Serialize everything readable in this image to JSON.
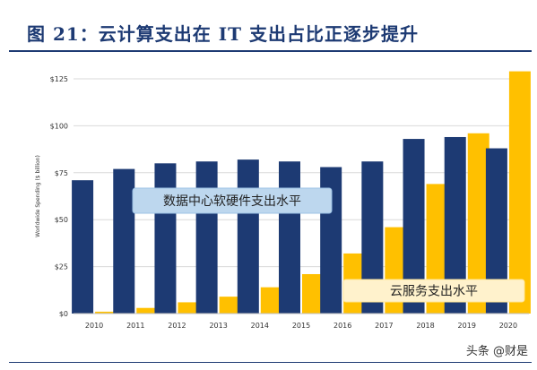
{
  "figure": {
    "title": "图 21：云计算支出在 IT 支出占比正逐步提升"
  },
  "watermark": "头条 @财是",
  "colors": {
    "title": "#1d3a73",
    "hardware_series": "#1d3a73",
    "cloud_series": "#ffc000",
    "hardware_label_box": "#bdd7ee",
    "cloud_label_box": "#fff2cc"
  },
  "chart_data": {
    "type": "bar",
    "title": "",
    "xlabel": "",
    "ylabel": "Worldwide Spending ($ billion)",
    "categories": [
      "2010",
      "2011",
      "2012",
      "2013",
      "2014",
      "2015",
      "2016",
      "2017",
      "2018",
      "2019",
      "2020"
    ],
    "ylim": [
      0,
      125
    ],
    "yticks": [
      0,
      25,
      50,
      75,
      100,
      125
    ],
    "ytick_labels": [
      "$0",
      "$25",
      "$50",
      "$75",
      "$100",
      "$125"
    ],
    "grid": true,
    "series": [
      {
        "name": "数据中心软硬件支出水平",
        "color": "#1d3a73",
        "values": [
          71,
          77,
          80,
          81,
          82,
          81,
          78,
          81,
          93,
          94,
          88
        ]
      },
      {
        "name": "云服务支出水平",
        "color": "#ffc000",
        "values": [
          1,
          3,
          6,
          9,
          14,
          21,
          32,
          46,
          69,
          96,
          129
        ]
      }
    ]
  }
}
